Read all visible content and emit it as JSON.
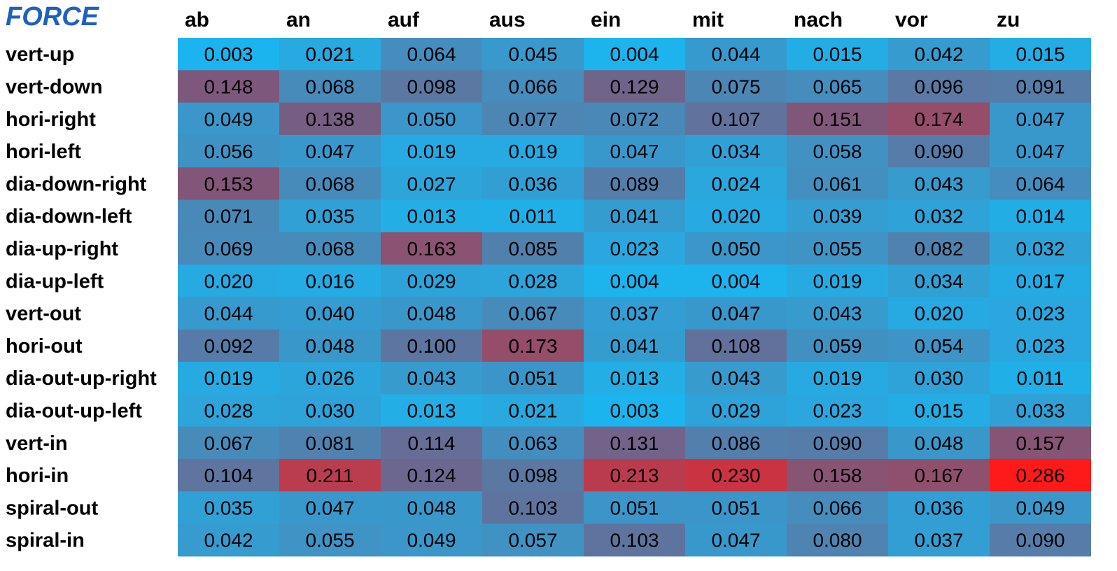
{
  "chart_data": {
    "type": "heatmap",
    "title": "FORCE",
    "columns": [
      "ab",
      "an",
      "auf",
      "aus",
      "ein",
      "mit",
      "nach",
      "vor",
      "zu"
    ],
    "rows": [
      "vert-up",
      "vert-down",
      "hori-right",
      "hori-left",
      "dia-down-right",
      "dia-down-left",
      "dia-up-right",
      "dia-up-left",
      "vert-out",
      "hori-out",
      "dia-out-up-right",
      "dia-out-up-left",
      "vert-in",
      "hori-in",
      "spiral-out",
      "spiral-in"
    ],
    "values": [
      [
        "0.003",
        "0.021",
        "0.064",
        "0.045",
        "0.004",
        "0.044",
        "0.015",
        "0.042",
        "0.015"
      ],
      [
        "0.148",
        "0.068",
        "0.098",
        "0.066",
        "0.129",
        "0.075",
        "0.065",
        "0.096",
        "0.091"
      ],
      [
        "0.049",
        "0.138",
        "0.050",
        "0.077",
        "0.072",
        "0.107",
        "0.151",
        "0.174",
        "0.047"
      ],
      [
        "0.056",
        "0.047",
        "0.019",
        "0.019",
        "0.047",
        "0.034",
        "0.058",
        "0.090",
        "0.047"
      ],
      [
        "0.153",
        "0.068",
        "0.027",
        "0.036",
        "0.089",
        "0.024",
        "0.061",
        "0.043",
        "0.064"
      ],
      [
        "0.071",
        "0.035",
        "0.013",
        "0.011",
        "0.041",
        "0.020",
        "0.039",
        "0.032",
        "0.014"
      ],
      [
        "0.069",
        "0.068",
        "0.163",
        "0.085",
        "0.023",
        "0.050",
        "0.055",
        "0.082",
        "0.032"
      ],
      [
        "0.020",
        "0.016",
        "0.029",
        "0.028",
        "0.004",
        "0.004",
        "0.019",
        "0.034",
        "0.017"
      ],
      [
        "0.044",
        "0.040",
        "0.048",
        "0.067",
        "0.037",
        "0.047",
        "0.043",
        "0.020",
        "0.023"
      ],
      [
        "0.092",
        "0.048",
        "0.100",
        "0.173",
        "0.041",
        "0.108",
        "0.059",
        "0.054",
        "0.023"
      ],
      [
        "0.019",
        "0.026",
        "0.043",
        "0.051",
        "0.013",
        "0.043",
        "0.019",
        "0.030",
        "0.011"
      ],
      [
        "0.028",
        "0.030",
        "0.013",
        "0.021",
        "0.003",
        "0.029",
        "0.023",
        "0.015",
        "0.033"
      ],
      [
        "0.067",
        "0.081",
        "0.114",
        "0.063",
        "0.131",
        "0.086",
        "0.090",
        "0.048",
        "0.157"
      ],
      [
        "0.104",
        "0.211",
        "0.124",
        "0.098",
        "0.213",
        "0.230",
        "0.158",
        "0.167",
        "0.286"
      ],
      [
        "0.035",
        "0.047",
        "0.048",
        "0.103",
        "0.051",
        "0.051",
        "0.066",
        "0.036",
        "0.049"
      ],
      [
        "0.042",
        "0.055",
        "0.049",
        "0.057",
        "0.103",
        "0.047",
        "0.080",
        "0.037",
        "0.090"
      ]
    ],
    "color_scale": {
      "low": "#1cb4ee",
      "mid": "#7a5a7e",
      "high": "#ff1a1a"
    }
  }
}
